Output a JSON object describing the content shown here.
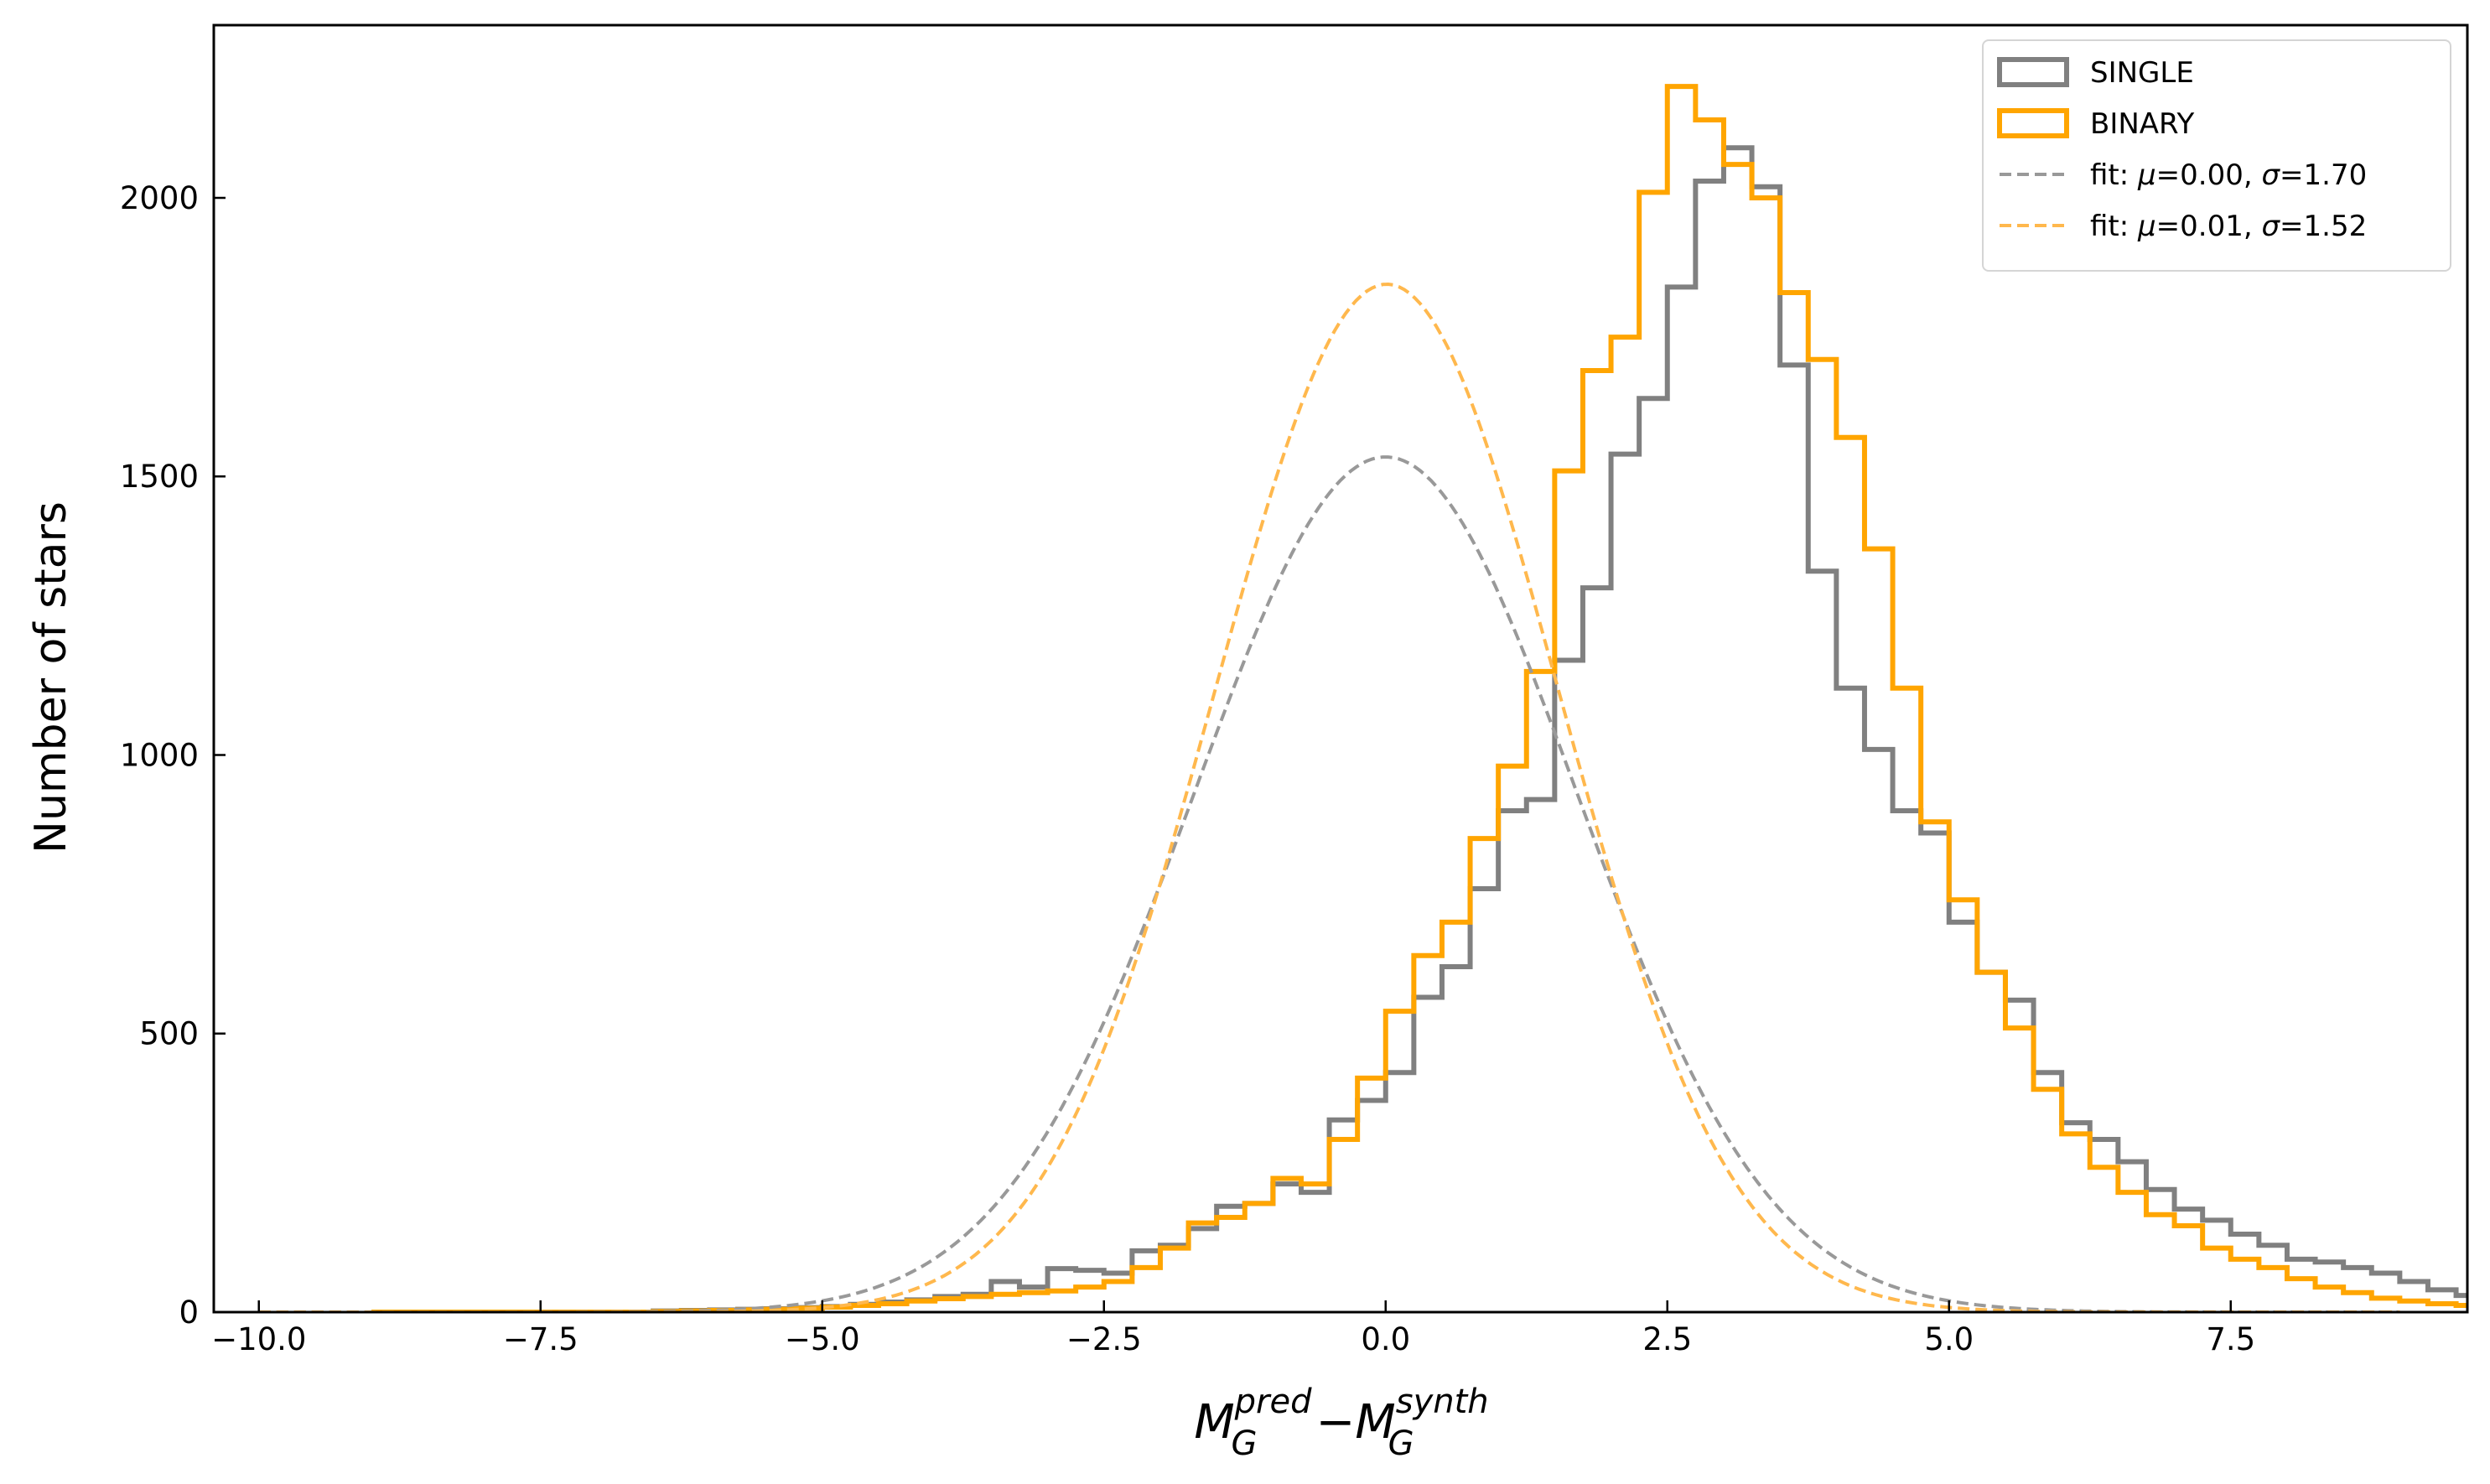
{
  "chart_data": {
    "type": "histogram",
    "xlabel": {
      "base1": "M",
      "sup1": "pred",
      "sub1": "G",
      "op": "−",
      "base2": "M",
      "sup2": "synth",
      "sub2": "G"
    },
    "ylabel": "Number of stars",
    "xlim": [
      -10.4,
      9.6
    ],
    "ylim": [
      0,
      2310
    ],
    "xticks": [
      -10.0,
      -7.5,
      -5.0,
      -2.5,
      0.0,
      2.5,
      5.0,
      7.5
    ],
    "xtick_labels": [
      "−10.0",
      "−7.5",
      "−5.0",
      "−2.5",
      "0.0",
      "2.5",
      "5.0",
      "7.5"
    ],
    "yticks": [
      0,
      500,
      1000,
      1500,
      2000
    ],
    "ytick_labels": [
      "0",
      "500",
      "1000",
      "1500",
      "2000"
    ],
    "grid": false,
    "legend_position": "top-right",
    "bin_width": 0.25,
    "series": [
      {
        "name": "SINGLE",
        "kind": "step",
        "color": "#808080",
        "bin_start": -9.0,
        "values": [
          0,
          0,
          0,
          0,
          0,
          0,
          0,
          0,
          0,
          0,
          2,
          3,
          4,
          5,
          6,
          8,
          10,
          14,
          18,
          22,
          28,
          32,
          55,
          45,
          78,
          75,
          70,
          110,
          120,
          150,
          190,
          195,
          230,
          215,
          345,
          380,
          430,
          565,
          620,
          760,
          900,
          920,
          1170,
          1300,
          1540,
          1640,
          1840,
          2030,
          2090,
          2020,
          1700,
          1330,
          1120,
          1010,
          900,
          860,
          700,
          610,
          560,
          430,
          340,
          310,
          270,
          220,
          185,
          165,
          140,
          120,
          95,
          90,
          80,
          70,
          55,
          40,
          30,
          22,
          18,
          14,
          10,
          8,
          6,
          4,
          3,
          2,
          1,
          1,
          0,
          0,
          0,
          0
        ]
      },
      {
        "name": "BINARY",
        "kind": "step",
        "color": "#ffa500",
        "bin_start": -9.0,
        "values": [
          0,
          0,
          0,
          0,
          0,
          0,
          0,
          0,
          0,
          0,
          1,
          2,
          3,
          4,
          5,
          7,
          9,
          12,
          15,
          20,
          24,
          28,
          32,
          35,
          38,
          45,
          55,
          80,
          115,
          160,
          170,
          195,
          240,
          230,
          310,
          420,
          540,
          640,
          700,
          850,
          980,
          1150,
          1510,
          1690,
          1750,
          2010,
          2200,
          2140,
          2060,
          2000,
          1830,
          1710,
          1570,
          1370,
          1120,
          880,
          740,
          610,
          510,
          400,
          320,
          260,
          215,
          175,
          155,
          115,
          95,
          80,
          60,
          45,
          35,
          25,
          20,
          15,
          12,
          8,
          6,
          5,
          3,
          2,
          1,
          1,
          0,
          0,
          0,
          0,
          0,
          0,
          0,
          0
        ]
      },
      {
        "name": "fit: μ=0.00, σ=1.70",
        "kind": "gaussian_fit",
        "color": "#999999",
        "mu": 0.0,
        "sigma": 1.7,
        "peak": 1535,
        "label_parts": {
          "pre": "fit: ",
          "mu": "μ",
          "mid": "=0.00, ",
          "sigma": "σ",
          "post": "=1.70"
        }
      },
      {
        "name": "fit: μ=0.01, σ=1.52",
        "kind": "gaussian_fit",
        "color": "#ffb84d",
        "mu": 0.01,
        "sigma": 1.52,
        "peak": 1845,
        "label_parts": {
          "pre": "fit: ",
          "mu": "μ",
          "mid": "=0.01, ",
          "sigma": "σ",
          "post": "=1.52"
        }
      }
    ]
  }
}
